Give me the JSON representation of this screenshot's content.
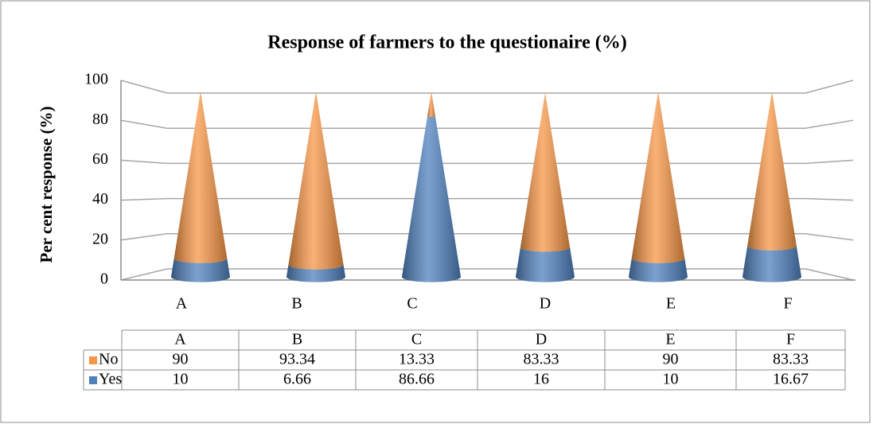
{
  "chart_data": {
    "type": "cone",
    "title": "Response of farmers to the questionaire  (%)",
    "y_label": "Per cent response (%)",
    "categories": [
      "A",
      "B",
      "C",
      "D",
      "E",
      "F"
    ],
    "series": [
      {
        "name": "No",
        "color": "#f79646",
        "values": [
          90,
          93.34,
          13.33,
          83.33,
          90,
          83.33
        ]
      },
      {
        "name": "Yes",
        "color": "#4f81bd",
        "values": [
          10,
          6.66,
          86.66,
          16,
          10,
          16.67
        ]
      }
    ],
    "stacked": true,
    "ylim": [
      0,
      100
    ],
    "yticks": [
      0,
      20,
      40,
      60,
      80,
      100
    ],
    "grid": true,
    "data_table": true
  }
}
